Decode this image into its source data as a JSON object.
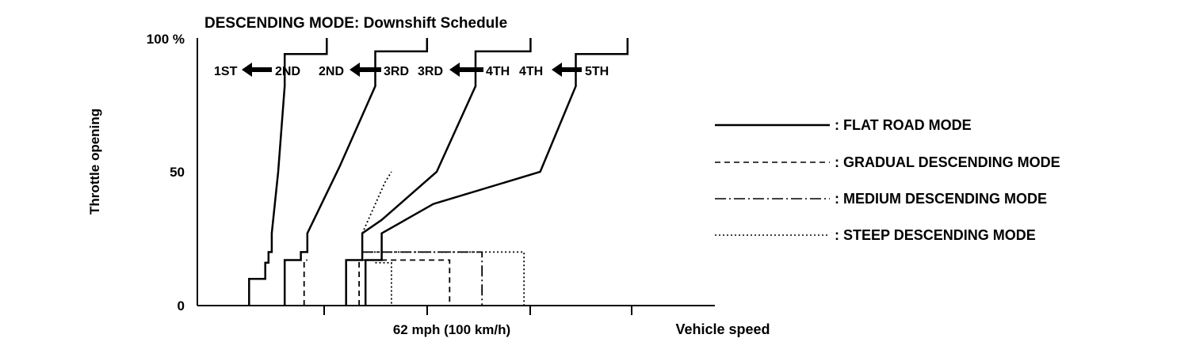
{
  "chart_data": {
    "type": "line",
    "title": "DESCENDING MODE: Downshift Schedule",
    "xlabel": "Vehicle speed",
    "ylabel": "Throttle opening",
    "x_tick_label": "62 mph (100 km/h)",
    "y_ticks": [
      "100 %",
      "50",
      "0"
    ],
    "ylim": [
      0,
      100
    ],
    "xlim": [
      0,
      160
    ],
    "shift_labels": [
      {
        "from": "2ND",
        "to": "1ST"
      },
      {
        "from": "3RD",
        "to": "2ND"
      },
      {
        "from": "4TH",
        "to": "3RD"
      },
      {
        "from": "5TH",
        "to": "4TH"
      }
    ],
    "legend": [
      {
        "name": ": FLAT ROAD MODE",
        "style": "solid"
      },
      {
        "name": ": GRADUAL DESCENDING MODE",
        "style": "dashed"
      },
      {
        "name": ": MEDIUM DESCENDING MODE",
        "style": "dash-dot"
      },
      {
        "name": ": STEEP DESCENDING MODE",
        "style": "dotted"
      }
    ],
    "series": [
      {
        "name": "2-1 FLAT",
        "style": "solid",
        "points": [
          [
            16,
            0
          ],
          [
            16,
            10
          ],
          [
            21,
            10
          ],
          [
            21,
            16
          ],
          [
            22,
            16
          ],
          [
            22,
            20
          ],
          [
            23,
            20
          ],
          [
            23,
            27
          ],
          [
            25,
            50
          ],
          [
            27,
            82
          ],
          [
            27,
            94
          ],
          [
            40,
            94
          ],
          [
            40,
            100
          ]
        ]
      },
      {
        "name": "3-2 FLAT",
        "style": "solid",
        "points": [
          [
            27,
            0
          ],
          [
            27,
            17
          ],
          [
            32,
            17
          ],
          [
            32,
            20
          ],
          [
            34,
            20
          ],
          [
            34,
            27
          ],
          [
            44,
            52
          ],
          [
            55,
            82
          ],
          [
            55,
            95
          ],
          [
            71,
            95
          ],
          [
            71,
            100
          ]
        ]
      },
      {
        "name": "4-3 FLAT",
        "style": "solid",
        "points": [
          [
            46,
            0
          ],
          [
            46,
            17
          ],
          [
            51,
            17
          ],
          [
            51,
            27
          ],
          [
            57,
            32
          ],
          [
            74,
            50
          ],
          [
            86,
            82
          ],
          [
            86,
            95
          ],
          [
            103,
            95
          ],
          [
            103,
            100
          ]
        ]
      },
      {
        "name": "5-4 FLAT",
        "style": "solid",
        "points": [
          [
            52,
            0
          ],
          [
            52,
            17
          ],
          [
            57,
            17
          ],
          [
            57,
            27
          ],
          [
            73,
            38
          ],
          [
            106,
            50
          ],
          [
            117,
            82
          ],
          [
            117,
            94
          ],
          [
            133,
            94
          ],
          [
            133,
            100
          ]
        ]
      },
      {
        "name": "3-2 GRADUAL",
        "style": "dashed",
        "points": [
          [
            33,
            0
          ],
          [
            33,
            17
          ],
          [
            34,
            17
          ]
        ]
      },
      {
        "name": "4-3 GRADUAL",
        "style": "dashed",
        "points": [
          [
            50,
            0
          ],
          [
            50,
            17
          ],
          [
            51,
            17
          ]
        ]
      },
      {
        "name": "5-4 DESCENDING",
        "style": "dotted",
        "points": [
          [
            51,
            27
          ],
          [
            58,
            46
          ],
          [
            60,
            50
          ]
        ]
      },
      {
        "name": "GRADUAL CAP",
        "style": "dashed",
        "points": [
          [
            51,
            17
          ],
          [
            78,
            17
          ],
          [
            78,
            0
          ]
        ]
      },
      {
        "name": "MEDIUM STEP",
        "style": "dash-dot",
        "points": [
          [
            51,
            20
          ],
          [
            88,
            20
          ],
          [
            88,
            0
          ],
          [
            125,
            0
          ]
        ]
      },
      {
        "name": "STEEP STEP",
        "style": "dotted",
        "points": [
          [
            51,
            20
          ],
          [
            101,
            20
          ],
          [
            101,
            0
          ],
          [
            125,
            0
          ]
        ]
      },
      {
        "name": "STEEP INNER",
        "style": "dotted",
        "points": [
          [
            55,
            16
          ],
          [
            60,
            16
          ],
          [
            60,
            0
          ]
        ]
      }
    ]
  }
}
